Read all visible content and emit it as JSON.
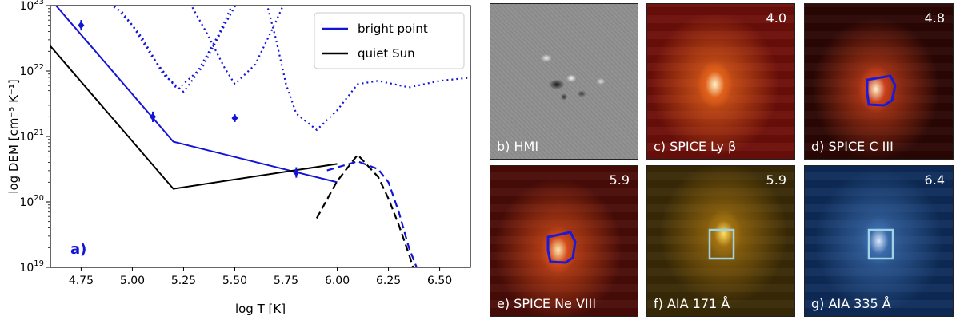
{
  "chart_data": {
    "type": "line",
    "panel_label": "a)",
    "xlabel": "log T [K]",
    "ylabel": "log DEM [cm⁻⁵ K⁻¹]",
    "xlim": [
      4.6,
      6.65
    ],
    "ylim_exp": [
      19,
      23
    ],
    "log_y": true,
    "x_ticks": [
      "4.75",
      "5.00",
      "5.25",
      "5.50",
      "5.75",
      "6.00",
      "6.25",
      "6.50"
    ],
    "y_tick_base": "10",
    "y_tick_exps": [
      "19",
      "20",
      "21",
      "22",
      "23"
    ],
    "legend_position": "top-right",
    "series": [
      {
        "name": "bright point",
        "color": "#1414d6",
        "style": "solid",
        "points": [
          [
            4.6,
            23.1
          ],
          [
            5.2,
            20.92
          ],
          [
            6.0,
            20.3
          ]
        ]
      },
      {
        "name": "quiet Sun",
        "color": "#000000",
        "style": "solid",
        "points": [
          [
            4.6,
            22.38
          ],
          [
            5.2,
            20.2
          ],
          [
            6.0,
            20.58
          ]
        ]
      }
    ],
    "dashed_series": [
      {
        "color": "#1414d6",
        "style": "dashed",
        "points": [
          [
            5.95,
            20.48
          ],
          [
            6.1,
            20.62
          ],
          [
            6.2,
            20.5
          ],
          [
            6.25,
            20.3
          ],
          [
            6.3,
            19.85
          ],
          [
            6.35,
            19.3
          ],
          [
            6.4,
            18.9
          ]
        ]
      },
      {
        "color": "#000000",
        "style": "dashed",
        "points": [
          [
            5.9,
            19.75
          ],
          [
            6.0,
            20.32
          ],
          [
            6.1,
            20.72
          ],
          [
            6.2,
            20.38
          ],
          [
            6.25,
            20.05
          ],
          [
            6.3,
            19.65
          ],
          [
            6.35,
            19.2
          ],
          [
            6.38,
            18.9
          ]
        ]
      }
    ],
    "loci_curves": [
      {
        "color": "#1414d6",
        "style": "dotted",
        "points": [
          [
            4.85,
            23.1
          ],
          [
            4.95,
            22.9
          ],
          [
            5.05,
            22.5
          ],
          [
            5.15,
            21.95
          ],
          [
            5.25,
            21.68
          ],
          [
            5.35,
            22.1
          ],
          [
            5.45,
            22.7
          ],
          [
            5.52,
            23.1
          ]
        ]
      },
      {
        "color": "#1414d6",
        "style": "dotted",
        "points": [
          [
            4.88,
            23.1
          ],
          [
            5.0,
            22.7
          ],
          [
            5.1,
            22.2
          ],
          [
            5.22,
            21.72
          ],
          [
            5.32,
            22.0
          ],
          [
            5.42,
            22.55
          ],
          [
            5.5,
            23.1
          ]
        ]
      },
      {
        "color": "#1414d6",
        "style": "dotted",
        "points": [
          [
            5.27,
            23.1
          ],
          [
            5.36,
            22.6
          ],
          [
            5.45,
            22.05
          ],
          [
            5.5,
            21.8
          ],
          [
            5.6,
            22.1
          ],
          [
            5.7,
            22.75
          ],
          [
            5.75,
            23.1
          ]
        ]
      },
      {
        "color": "#1414d6",
        "style": "dotted",
        "points": [
          [
            5.65,
            23.1
          ],
          [
            5.7,
            22.5
          ],
          [
            5.75,
            21.8
          ],
          [
            5.8,
            21.35
          ],
          [
            5.9,
            21.1
          ],
          [
            6.0,
            21.4
          ],
          [
            6.1,
            21.8
          ],
          [
            6.2,
            21.85
          ],
          [
            6.35,
            21.75
          ],
          [
            6.5,
            21.85
          ],
          [
            6.65,
            21.9
          ]
        ]
      },
      {
        "color": "#1414d6",
        "style": "dotted",
        "points": [
          [
            5.2,
            23.1
          ],
          [
            5.3,
            23.05
          ],
          [
            5.35,
            23.1
          ]
        ]
      }
    ],
    "data_points": [
      {
        "x": 4.75,
        "y": 22.7,
        "err": 0.08
      },
      {
        "x": 5.1,
        "y": 21.3,
        "err": 0.08
      },
      {
        "x": 5.5,
        "y": 21.28,
        "err": 0.06
      },
      {
        "x": 5.8,
        "y": 20.45,
        "err": 0.08
      }
    ]
  },
  "panels": [
    {
      "id": "b",
      "label": "b) HMI",
      "value": "",
      "overlay": "none",
      "colors": {
        "base": "#8f8f8f"
      }
    },
    {
      "id": "c",
      "label": "c) SPICE Ly β",
      "value": "4.0",
      "overlay": "none",
      "colors": {
        "base": "#6e0f0a",
        "glow": "#fff3c8",
        "mid": "#e0601a"
      }
    },
    {
      "id": "d",
      "label": "d) SPICE C III",
      "value": "4.8",
      "overlay": "contour",
      "colors": {
        "base": "#2a0604",
        "glow": "#fff2d0",
        "mid": "#c8401a"
      }
    },
    {
      "id": "e",
      "label": "e) SPICE Ne VIII",
      "value": "5.9",
      "overlay": "contour",
      "colors": {
        "base": "#4a0c08",
        "glow": "#ffe8b0",
        "mid": "#d04a18"
      }
    },
    {
      "id": "f",
      "label": "f) AIA 171 Å",
      "value": "5.9",
      "overlay": "box",
      "colors": {
        "base": "#3a2a06",
        "glow": "#ffe060",
        "mid": "#a07010"
      }
    },
    {
      "id": "g",
      "label": "g) AIA 335 Å",
      "value": "6.4",
      "overlay": "box",
      "colors": {
        "base": "#0e2c5a",
        "glow": "#d8e8ff",
        "mid": "#3a6aa8"
      }
    }
  ],
  "overlay_colors": {
    "contour": "#1a1ad8",
    "box": "#9fd3e6"
  }
}
